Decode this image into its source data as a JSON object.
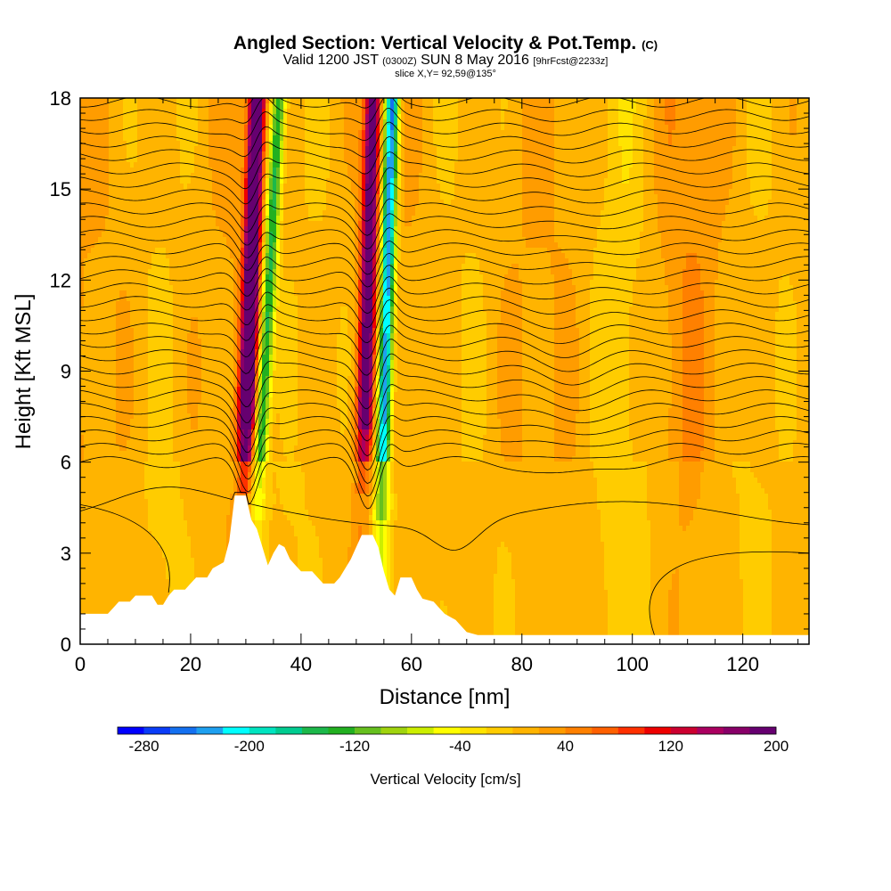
{
  "chart_data": {
    "type": "heatmap",
    "title": "Angled Section: Vertical Velocity & Pot.Temp.",
    "title_units": "(C)",
    "subtitle_valid": "Valid 1200 JST",
    "subtitle_z": "(0300Z)",
    "subtitle_date": "SUN 8 May 2016",
    "subtitle_fcst": "[9hrFcst@2233z]",
    "slice_label": "slice X,Y= 92,59@135°",
    "xlabel": "Distance [nm]",
    "ylabel": "Height [Kft MSL]",
    "xlim": [
      0,
      132
    ],
    "ylim": [
      0,
      18
    ],
    "x_ticks": [
      0,
      20,
      40,
      60,
      80,
      100,
      120
    ],
    "y_ticks": [
      0,
      3,
      6,
      9,
      12,
      15,
      18
    ],
    "colorbar": {
      "title": "Vertical Velocity [cm/s]",
      "min": -300,
      "step": 20,
      "colors": [
        "#0000ff",
        "#0a3cf8",
        "#1470f0",
        "#1ea0f0",
        "#00ffff",
        "#00e4c0",
        "#00cc90",
        "#1cb84a",
        "#22b020",
        "#66c01e",
        "#a0d40e",
        "#ccee00",
        "#ffff00",
        "#ffe400",
        "#ffcc00",
        "#ffb400",
        "#ff9c00",
        "#ff8000",
        "#ff6000",
        "#ff3000",
        "#ee0000",
        "#cc0030",
        "#aa0060",
        "#880068",
        "#660070"
      ],
      "tick_labels": [
        "-280",
        "-200",
        "-120",
        "-40",
        "40",
        "120",
        "200"
      ],
      "tick_values": [
        -280,
        -200,
        -120,
        -40,
        40,
        120,
        200
      ]
    },
    "terrain": [
      [
        0,
        1.0
      ],
      [
        5,
        1.0
      ],
      [
        6,
        1.2
      ],
      [
        7,
        1.4
      ],
      [
        9,
        1.4
      ],
      [
        10,
        1.6
      ],
      [
        13,
        1.6
      ],
      [
        14,
        1.3
      ],
      [
        15,
        1.3
      ],
      [
        16,
        1.6
      ],
      [
        17,
        1.8
      ],
      [
        19,
        1.8
      ],
      [
        20,
        2.0
      ],
      [
        21,
        2.2
      ],
      [
        23,
        2.2
      ],
      [
        24,
        2.5
      ],
      [
        26,
        2.7
      ],
      [
        27,
        3.4
      ],
      [
        28,
        4.9
      ],
      [
        30,
        4.9
      ],
      [
        31,
        4.1
      ],
      [
        32,
        3.8
      ],
      [
        33,
        3.2
      ],
      [
        34,
        2.6
      ],
      [
        35,
        3.0
      ],
      [
        36,
        3.3
      ],
      [
        37,
        3.2
      ],
      [
        38,
        2.8
      ],
      [
        39,
        2.6
      ],
      [
        40,
        2.4
      ],
      [
        42,
        2.4
      ],
      [
        43,
        2.2
      ],
      [
        44,
        2.0
      ],
      [
        46,
        2.0
      ],
      [
        47,
        2.2
      ],
      [
        48,
        2.5
      ],
      [
        49,
        2.8
      ],
      [
        50,
        3.2
      ],
      [
        51,
        3.6
      ],
      [
        53,
        3.6
      ],
      [
        54,
        3.2
      ],
      [
        55,
        2.4
      ],
      [
        56,
        1.8
      ],
      [
        57,
        1.6
      ],
      [
        58,
        2.2
      ],
      [
        60,
        2.2
      ],
      [
        61,
        1.8
      ],
      [
        62,
        1.5
      ],
      [
        64,
        1.4
      ],
      [
        65,
        1.2
      ],
      [
        66,
        1.0
      ],
      [
        68,
        0.8
      ],
      [
        69,
        0.6
      ],
      [
        70,
        0.4
      ],
      [
        72,
        0.3
      ],
      [
        132,
        0.3
      ]
    ],
    "updrafts": [
      {
        "name": "updraft-1",
        "x_base": 29.5,
        "x_top": 32.0,
        "max_cm_s": 260
      },
      {
        "name": "updraft-2",
        "x_base": 51.0,
        "x_top": 53.0,
        "max_cm_s": 200
      }
    ],
    "downdrafts": [
      {
        "name": "downdraft-1",
        "x_base": 32.0,
        "x_top": 36.0,
        "min_cm_s": -160
      },
      {
        "name": "downdraft-2",
        "x_base": 54.5,
        "x_top": 56.5,
        "min_cm_s": -260
      }
    ],
    "theta_contour_count": 28
  }
}
